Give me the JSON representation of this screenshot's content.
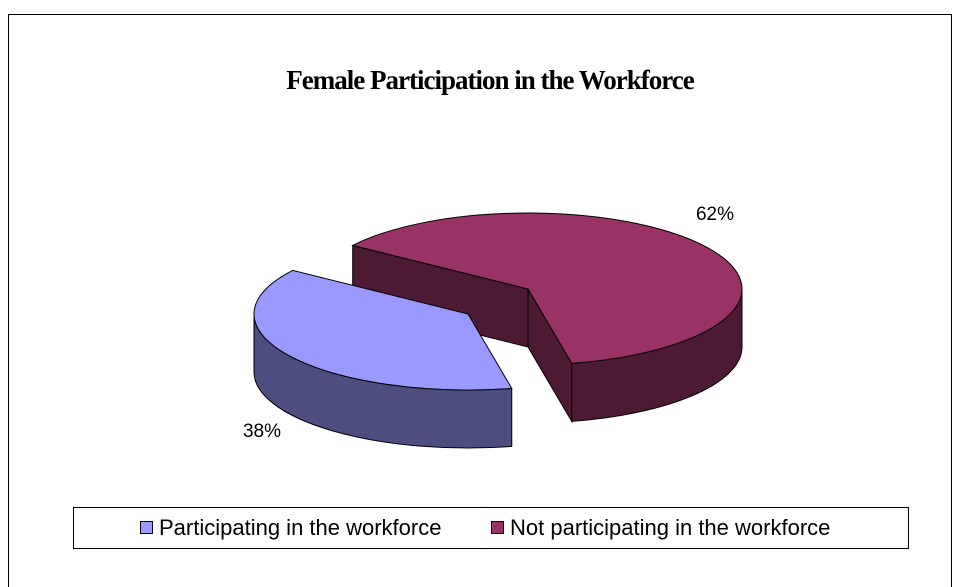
{
  "chart_data": {
    "type": "pie",
    "title": "Female Participation in the Workforce",
    "categories": [
      "Participating in the workforce",
      "Not participating in the workforce"
    ],
    "values": [
      38,
      62
    ],
    "value_labels": [
      "38%",
      "62%"
    ],
    "colors": [
      "#9999ff",
      "#993366"
    ],
    "legend": "bottom",
    "three_d": true,
    "explode": [
      true,
      false
    ]
  }
}
